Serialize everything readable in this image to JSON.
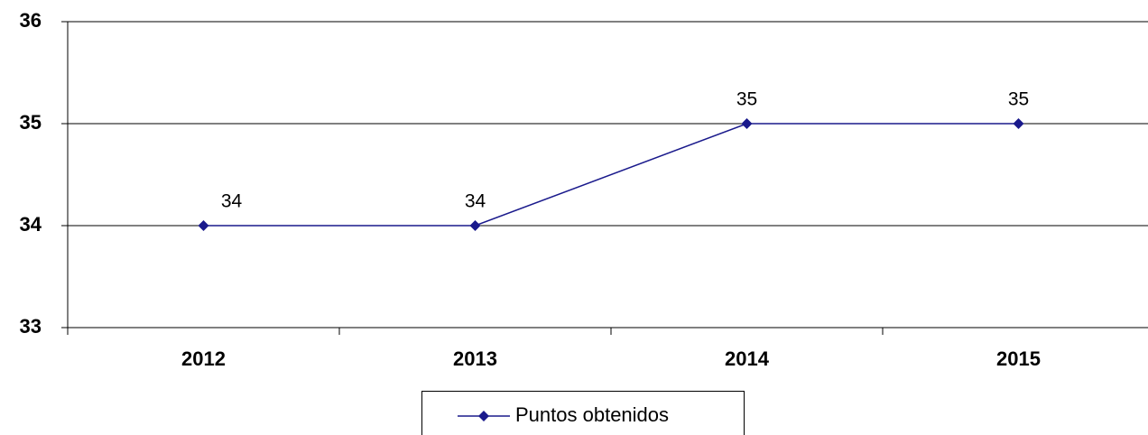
{
  "chart_data": {
    "type": "line",
    "categories": [
      "2012",
      "2013",
      "2014",
      "2015"
    ],
    "series": [
      {
        "name": "Puntos obtenidos",
        "color": "#1a1a8c",
        "values": [
          34,
          34,
          35,
          35
        ]
      }
    ],
    "ylim": [
      33,
      36
    ],
    "yticks": [
      33,
      34,
      35,
      36
    ],
    "grid": true,
    "legend": "bottom"
  }
}
